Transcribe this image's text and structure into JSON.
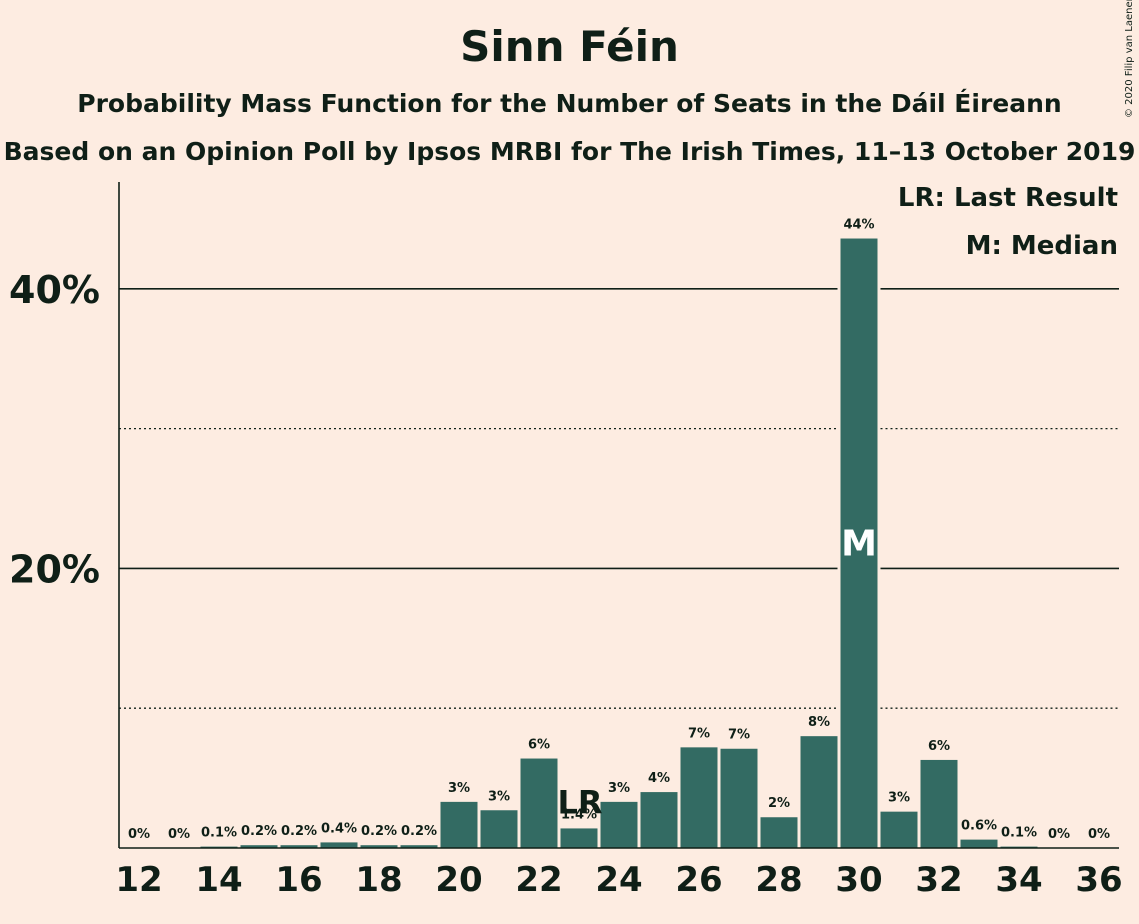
{
  "title": "Sinn Féin",
  "subtitle": "Probability Mass Function for the Number of Seats in the Dáil Éireann",
  "subtitle2": "Based on an Opinion Poll by Ipsos MRBI for The Irish Times, 11–13 October 2019",
  "copyright": "© 2020 Filip van Laenen",
  "legend": {
    "last_result": "LR: Last Result",
    "median": "M: Median"
  },
  "colors": {
    "background": "#FDECE1",
    "bar": "#336B63",
    "text": "#0F1F17"
  },
  "chart_data": {
    "type": "bar",
    "x": [
      12,
      13,
      14,
      15,
      16,
      17,
      18,
      19,
      20,
      21,
      22,
      23,
      24,
      25,
      26,
      27,
      28,
      29,
      30,
      31,
      32,
      33,
      34,
      35,
      36
    ],
    "values": [
      0,
      0,
      0.1,
      0.2,
      0.2,
      0.4,
      0.2,
      0.2,
      3.3,
      2.7,
      6.4,
      1.4,
      3.3,
      4.0,
      7.2,
      7.1,
      2.2,
      8.0,
      43.6,
      2.6,
      6.3,
      0.6,
      0.1,
      0,
      0
    ],
    "data_labels": [
      "0%",
      "0%",
      "0.1%",
      "0.2%",
      "0.2%",
      "0.4%",
      "0.2%",
      "0.2%",
      "3%",
      "3%",
      "6%",
      "1.4%",
      "3%",
      "4%",
      "7%",
      "7%",
      "2%",
      "8%",
      "44%",
      "3%",
      "6%",
      "0.6%",
      "0.1%",
      "0%",
      "0%"
    ],
    "x_ticks": [
      "12",
      "14",
      "16",
      "18",
      "20",
      "22",
      "24",
      "26",
      "28",
      "30",
      "32",
      "34",
      "36"
    ],
    "y_ticks": [
      "20%",
      "40%"
    ],
    "ylim": [
      0,
      47.5
    ],
    "gridlines_solid": [
      20,
      40
    ],
    "gridlines_dotted": [
      10,
      30
    ],
    "last_result": {
      "x": 23,
      "label": "LR"
    },
    "median": {
      "x": 30,
      "label": "M"
    }
  }
}
